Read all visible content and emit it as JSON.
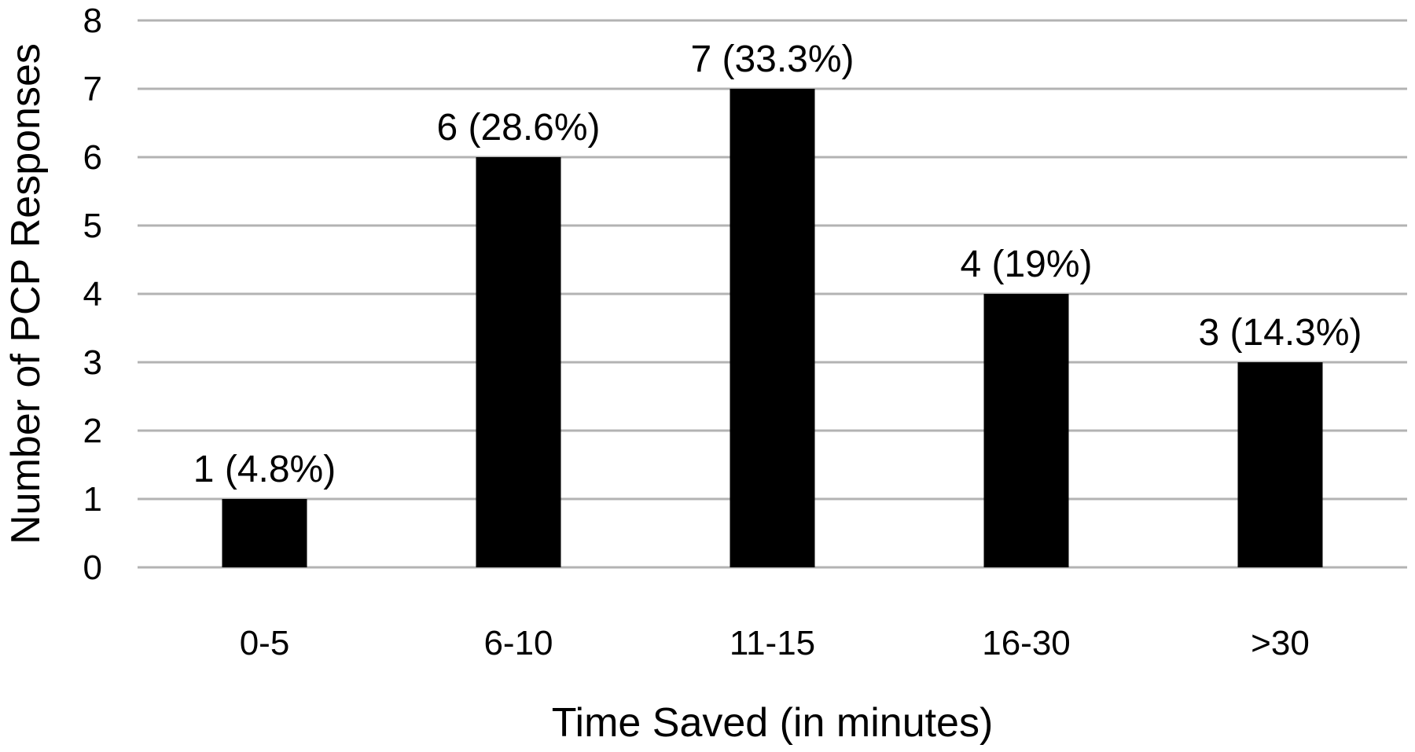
{
  "chart_data": {
    "type": "bar",
    "categories": [
      "0-5",
      "6-10",
      "11-15",
      "16-30",
      ">30"
    ],
    "values": [
      1,
      6,
      7,
      4,
      3
    ],
    "data_labels": [
      "1 (4.8%)",
      "6 (28.6%)",
      "7 (33.3%)",
      "4 (19%)",
      "3 (14.3%)"
    ],
    "y_ticks": [
      "0",
      "1",
      "2",
      "3",
      "4",
      "5",
      "6",
      "7",
      "8"
    ],
    "xlabel": "Time Saved (in minutes)",
    "ylabel": "Number of PCP Responses",
    "ylim": [
      0,
      8
    ],
    "grid": true,
    "legend": "none",
    "colors": {
      "bar": "#000000",
      "grid": "#b3b3b3"
    }
  }
}
